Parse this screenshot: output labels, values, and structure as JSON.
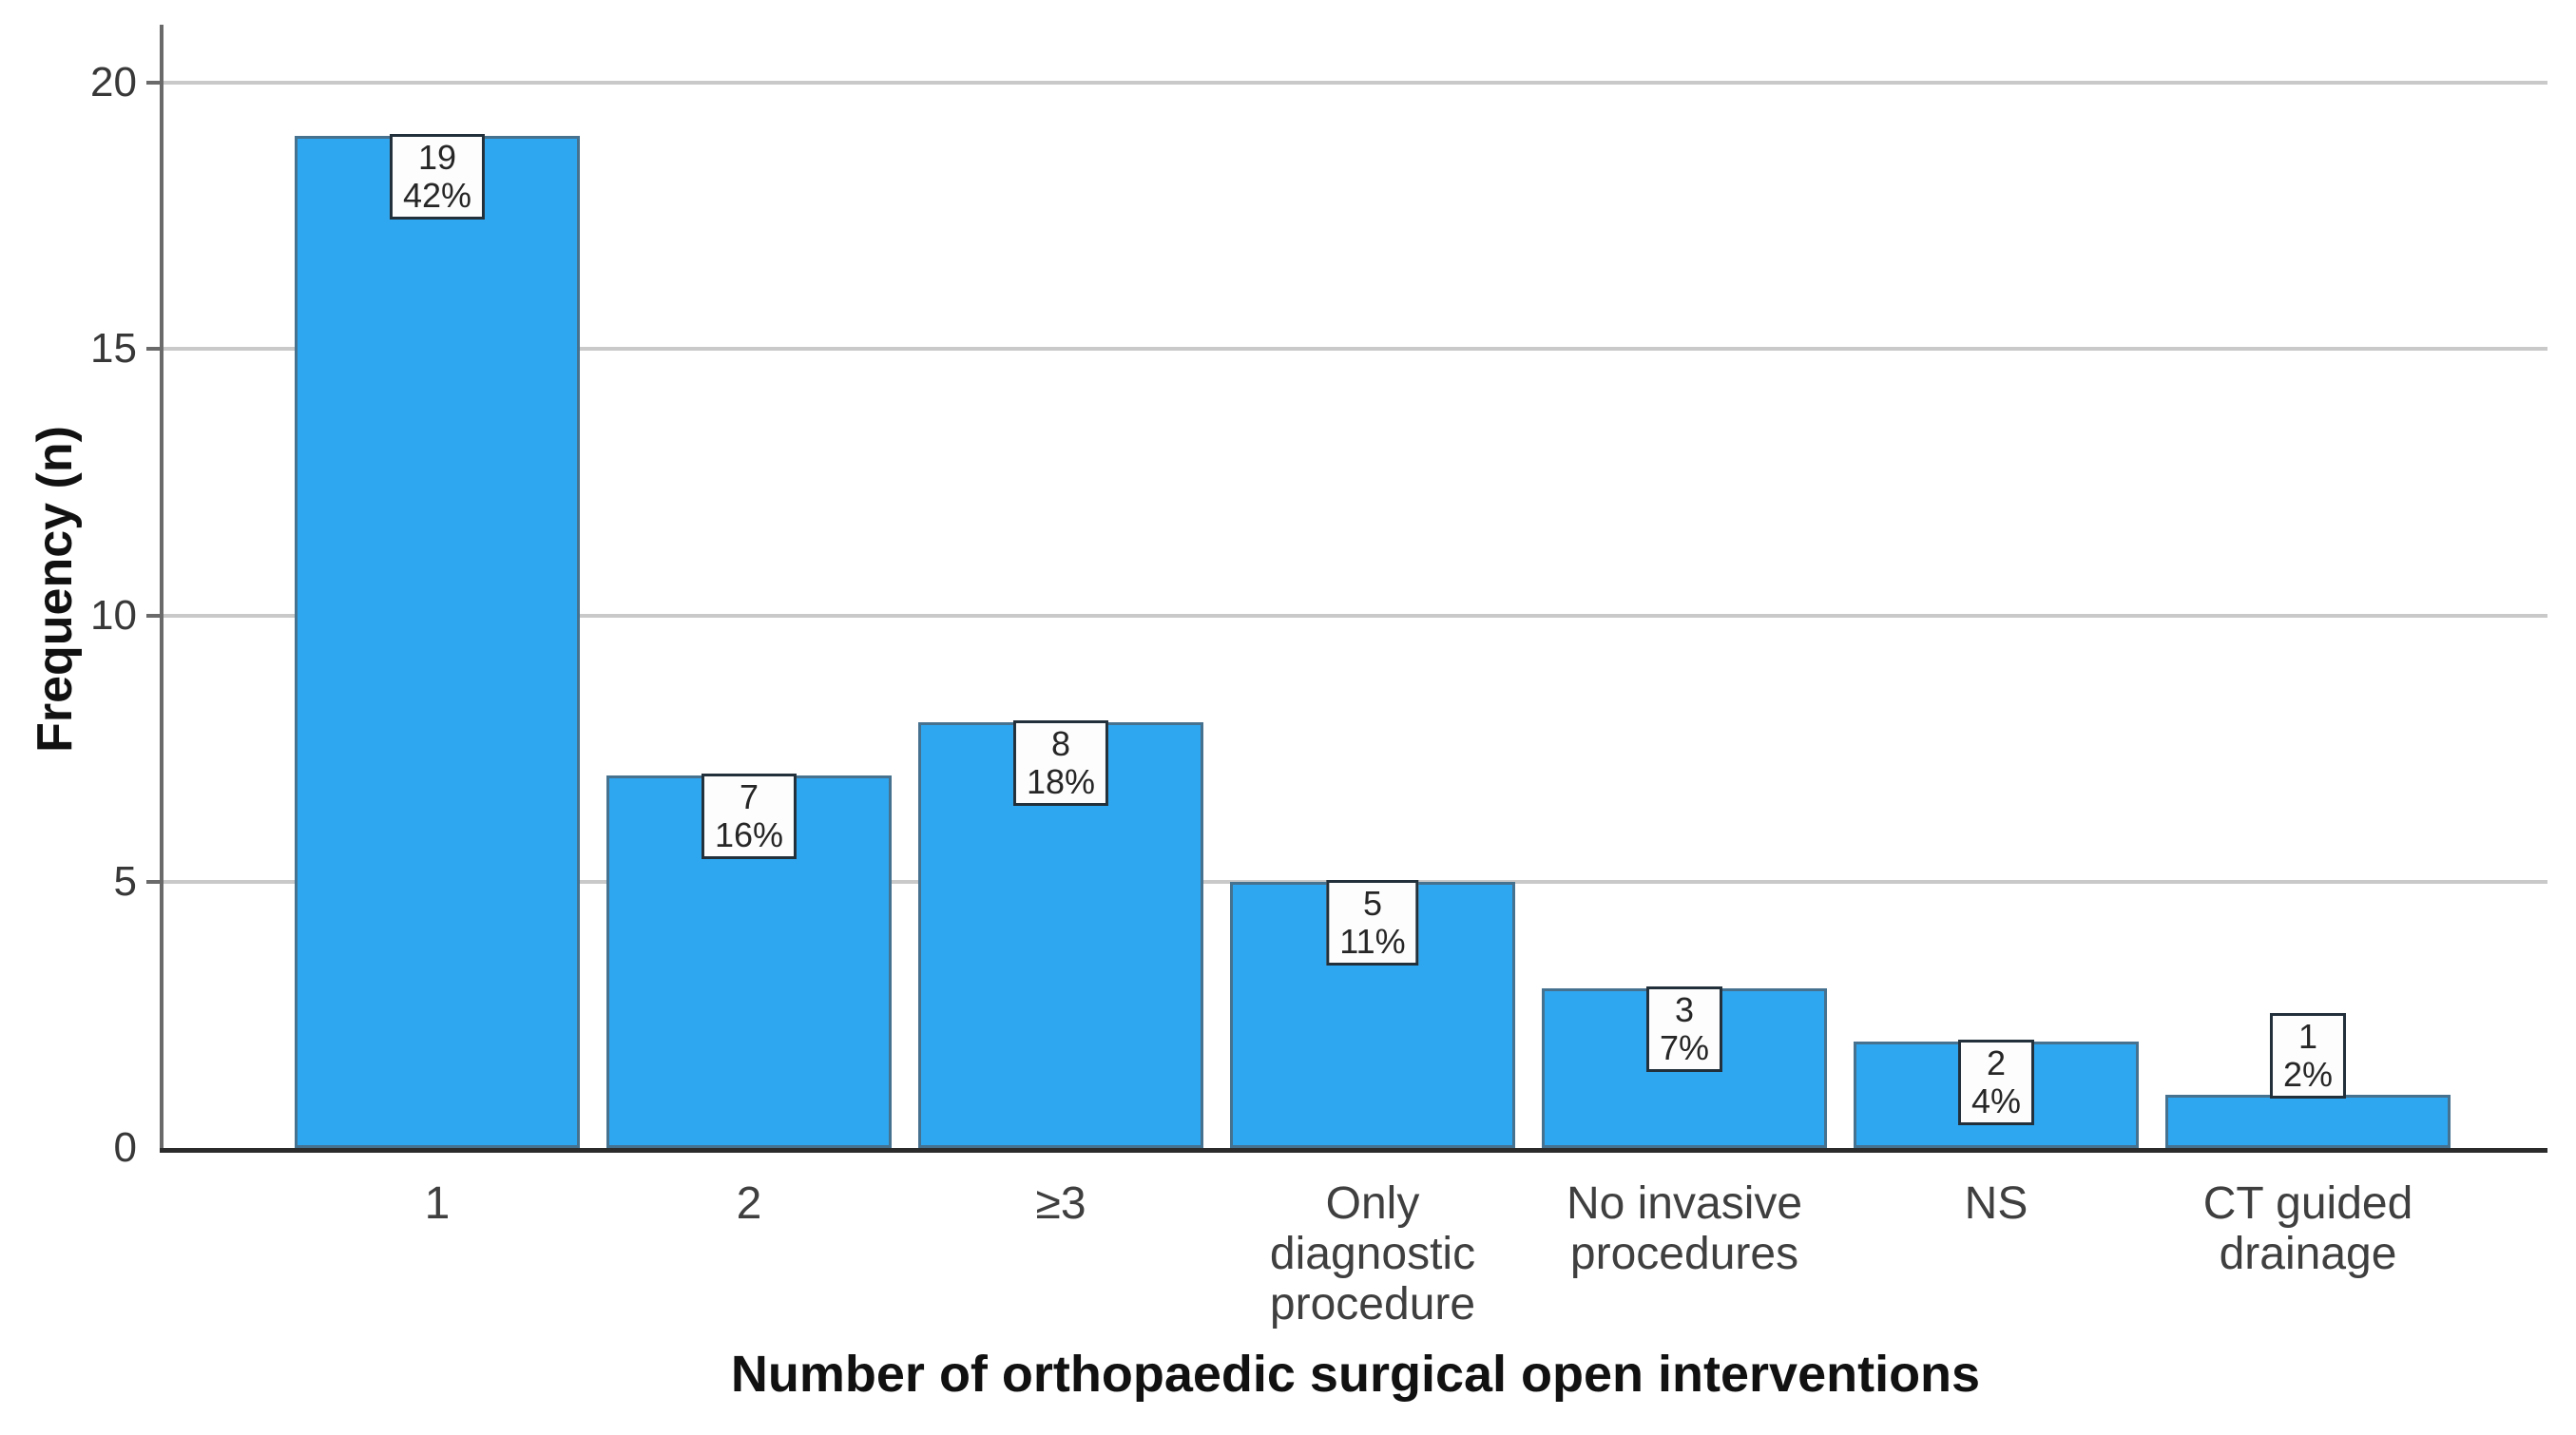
{
  "chart_data": {
    "type": "bar",
    "categories": [
      "1",
      "2",
      "≥3",
      "Only\ndiagnostic\nprocedure",
      "No invasive\nprocedures",
      "NS",
      "CT guided\ndrainage"
    ],
    "values": [
      19,
      7,
      8,
      5,
      3,
      2,
      1
    ],
    "counts_text": [
      "19",
      "7",
      "8",
      "5",
      "3",
      "2",
      "1"
    ],
    "percents_text": [
      "42%",
      "16%",
      "18%",
      "11%",
      "7%",
      "4%",
      "2%"
    ],
    "title": "",
    "xlabel": "Number of orthopaedic surgical open interventions",
    "ylabel": "Frequency (n)",
    "ylim": [
      0,
      21
    ],
    "yticks": [
      0,
      5,
      10,
      15,
      20
    ],
    "grid": "horizontal-only",
    "legend": "none",
    "colors": {
      "bar_fill": "#2fa7f0",
      "bar_border": "#46718f",
      "gridline": "#c9c9c9",
      "y_axis_line": "#6a6a6a",
      "baseline": "#2b2b2b",
      "label_box_bg": "#fdfdfd",
      "label_box_border": "#22303b",
      "tick_text": "#3f3f3f",
      "title_text": "#111111"
    }
  }
}
